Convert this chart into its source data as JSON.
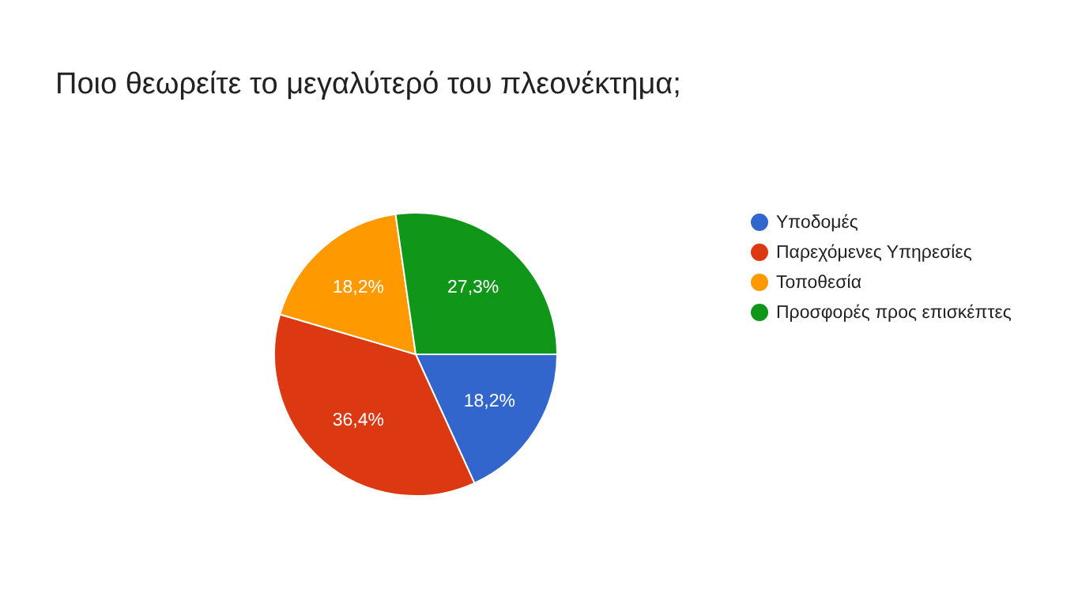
{
  "chart_data": {
    "type": "pie",
    "title": "Ποιο θεωρείτε το μεγαλύτερό του πλεονέκτημα;",
    "categories": [
      "Υποδομές",
      "Παρεχόμενες Υπηρεσίες",
      "Τοποθεσία",
      "Προσφορές προς επισκέπτες"
    ],
    "values": [
      18.2,
      36.4,
      18.2,
      27.3
    ],
    "value_labels": [
      "18,2%",
      "36,4%",
      "18,2%",
      "27,3%"
    ],
    "colors": [
      "#3366cc",
      "#dc3912",
      "#ff9900",
      "#109618"
    ],
    "legend": "right"
  }
}
